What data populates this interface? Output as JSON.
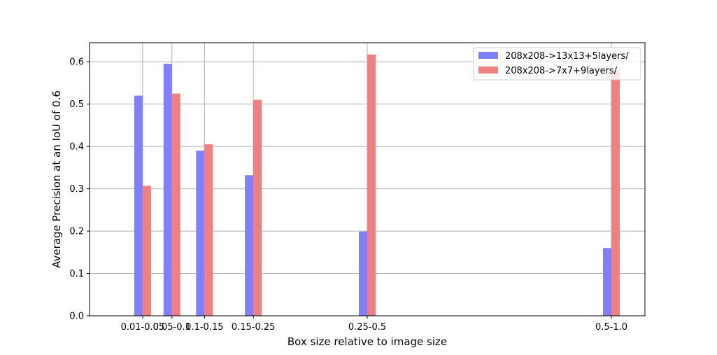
{
  "chart_data": {
    "type": "bar",
    "title": "",
    "xlabel": "Box size relative to image size",
    "ylabel": "Average Precision at an IoU of 0.6",
    "categories": [
      "0.01-0.05",
      "0.05-0.1",
      "0.1-0.15",
      "0.15-0.25",
      "0.25-0.5",
      "0.5-1.0"
    ],
    "category_positions": [
      0.03,
      0.075,
      0.125,
      0.2,
      0.375,
      0.75
    ],
    "xlim": [
      0.0,
      0.75
    ],
    "ylim": [
      0,
      0.645
    ],
    "yticks": [
      0.0,
      0.1,
      0.2,
      0.3,
      0.4,
      0.5,
      0.6
    ],
    "grid": true,
    "legend_position": "top-right",
    "series": [
      {
        "name": "208x208->13x13+5layers/",
        "color": "#8080ff",
        "values": [
          0.52,
          0.595,
          0.39,
          0.332,
          0.199,
          0.16
        ]
      },
      {
        "name": "208x208->7x7+9layers/",
        "color": "#f08080",
        "values": [
          0.307,
          0.525,
          0.405,
          0.51,
          0.617,
          0.58
        ]
      }
    ]
  }
}
